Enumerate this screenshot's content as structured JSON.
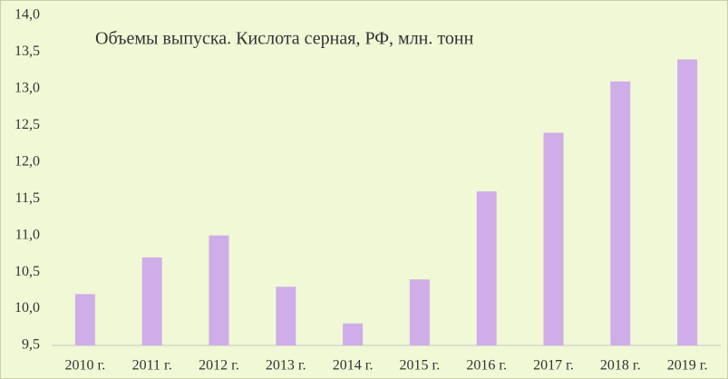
{
  "chart_data": {
    "type": "bar",
    "title": "Объемы выпуска. Кислота серная, РФ, млн. тонн",
    "categories": [
      "2010 г.",
      "2011 г.",
      "2012 г.",
      "2013 г.",
      "2014 г.",
      "2015 г.",
      "2016 г.",
      "2017 г.",
      "2018 г.",
      "2019 г."
    ],
    "values": [
      10.2,
      10.7,
      11.0,
      10.3,
      9.8,
      10.4,
      11.6,
      12.4,
      13.1,
      13.4
    ],
    "color": "#cfade8",
    "ylim": [
      9.5,
      14.0
    ],
    "yticks": [
      {
        "value": 9.5,
        "label": "9,5"
      },
      {
        "value": 10.0,
        "label": "10,0"
      },
      {
        "value": 10.5,
        "label": "10,5"
      },
      {
        "value": 11.0,
        "label": "11,0"
      },
      {
        "value": 11.5,
        "label": "11,5"
      },
      {
        "value": 12.0,
        "label": "12,0"
      },
      {
        "value": 12.5,
        "label": "12,5"
      },
      {
        "value": 13.0,
        "label": "13,0"
      },
      {
        "value": 13.5,
        "label": "13,5"
      },
      {
        "value": 14.0,
        "label": "14,0"
      }
    ],
    "grid": false
  }
}
